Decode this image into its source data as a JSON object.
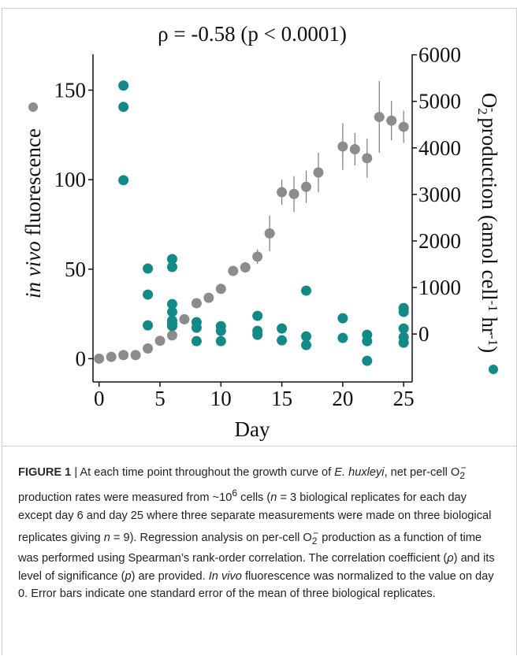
{
  "chart_data": {
    "type": "scatter",
    "title": "ρ = -0.58 (p < 0.0001)",
    "x_label": "Day",
    "y_label": [
      {
        "text": "in vivo",
        "style": "italic"
      },
      {
        "text": " fluorescence"
      }
    ],
    "y2_label": [
      {
        "text": "O"
      },
      {
        "text": "2",
        "style": "sub"
      },
      {
        "text": "-",
        "style": "sup"
      },
      {
        "text": " production (amol cell"
      },
      {
        "text": "-1",
        "style": "sup"
      },
      {
        "text": " hr"
      },
      {
        "text": "-1",
        "style": "sup"
      },
      {
        "text": ")"
      }
    ],
    "xlim": [
      -0.5,
      25.7
    ],
    "xticks": [
      0,
      5,
      10,
      15,
      20,
      25
    ],
    "ylim": [
      -13,
      170
    ],
    "yticks": [
      0,
      50,
      100,
      150
    ],
    "y2lim": [
      -1030,
      6010
    ],
    "y2ticks": [
      0,
      1000,
      2000,
      3000,
      4000,
      5000,
      6000
    ],
    "series": [
      {
        "color": "#8c8c8c",
        "axis": "y",
        "x": [
          0,
          1,
          2,
          3,
          4,
          5,
          6,
          7,
          8,
          9,
          10,
          11,
          12,
          13,
          14,
          15,
          16,
          17,
          18,
          20,
          21,
          22,
          23,
          24,
          25
        ],
        "values": [
          0,
          1,
          2,
          2,
          5.7,
          10,
          13,
          22,
          31,
          34,
          39,
          49,
          51,
          57,
          70,
          93,
          92,
          96,
          104,
          118.5,
          117,
          112,
          135,
          133,
          129.5
        ],
        "errors": [
          null,
          null,
          null,
          null,
          null,
          null,
          null,
          null,
          null,
          null,
          null,
          2,
          3,
          4,
          10,
          7,
          10,
          9,
          11,
          13,
          9,
          11,
          20,
          11,
          9
        ]
      },
      {
        "color": "#138a86",
        "axis": "y2",
        "x": [
          2,
          2,
          2,
          4,
          4,
          4,
          6,
          6,
          6,
          6,
          6,
          6,
          6,
          8,
          8,
          8,
          10,
          10,
          10,
          13,
          13,
          13,
          15,
          15,
          17,
          17,
          17,
          20,
          20,
          22,
          22,
          22,
          25,
          25,
          25,
          25,
          25
        ],
        "values": [
          5339,
          4881,
          3305,
          1407,
          847,
          186,
          1610,
          1441,
          644,
          475,
          288,
          220,
          170,
          254,
          136,
          -153,
          170,
          68,
          -153,
          390,
          68,
          -17,
          119,
          -136,
          932,
          -51,
          -237,
          339,
          -85,
          -17,
          -153,
          -576,
          559,
          475,
          119,
          -68,
          -186
        ]
      }
    ]
  },
  "caption": {
    "runs": [
      {
        "text": "FIGURE 1",
        "style": "bold"
      },
      {
        "text": " | At each time point throughout the growth curve of "
      },
      {
        "text": "E. huxleyi",
        "style": "italic"
      },
      {
        "text": ", net per-cell "
      },
      {
        "text": "O"
      },
      {
        "text": "2",
        "style": "sub"
      },
      {
        "text": "−",
        "style": "sup"
      },
      {
        "text": " production rates were measured from ~10"
      },
      {
        "text": "6",
        "style": "sup"
      },
      {
        "text": " cells ("
      },
      {
        "text": "n",
        "style": "italic"
      },
      {
        "text": " = 3 biological replicates for each day except day 6 and day 25 where three separate measurements were made on three biological replicates giving "
      },
      {
        "text": "n",
        "style": "italic"
      },
      {
        "text": " = 9). Regression analysis on per-cell "
      },
      {
        "text": "O"
      },
      {
        "text": "2",
        "style": "sub"
      },
      {
        "text": "−",
        "style": "sup"
      },
      {
        "text": " production as a function of time was performed using Spearman’s rank-order correlation. The correlation coefficient ("
      },
      {
        "text": "ρ",
        "style": "italic"
      },
      {
        "text": ") and its level of significance ("
      },
      {
        "text": "p",
        "style": "italic"
      },
      {
        "text": ") are provided. "
      },
      {
        "text": "In vivo",
        "style": "italic"
      },
      {
        "text": " fluorescence was normalized to the value on day 0. Error bars indicate one standard error of the mean of three biological replicates."
      }
    ]
  }
}
